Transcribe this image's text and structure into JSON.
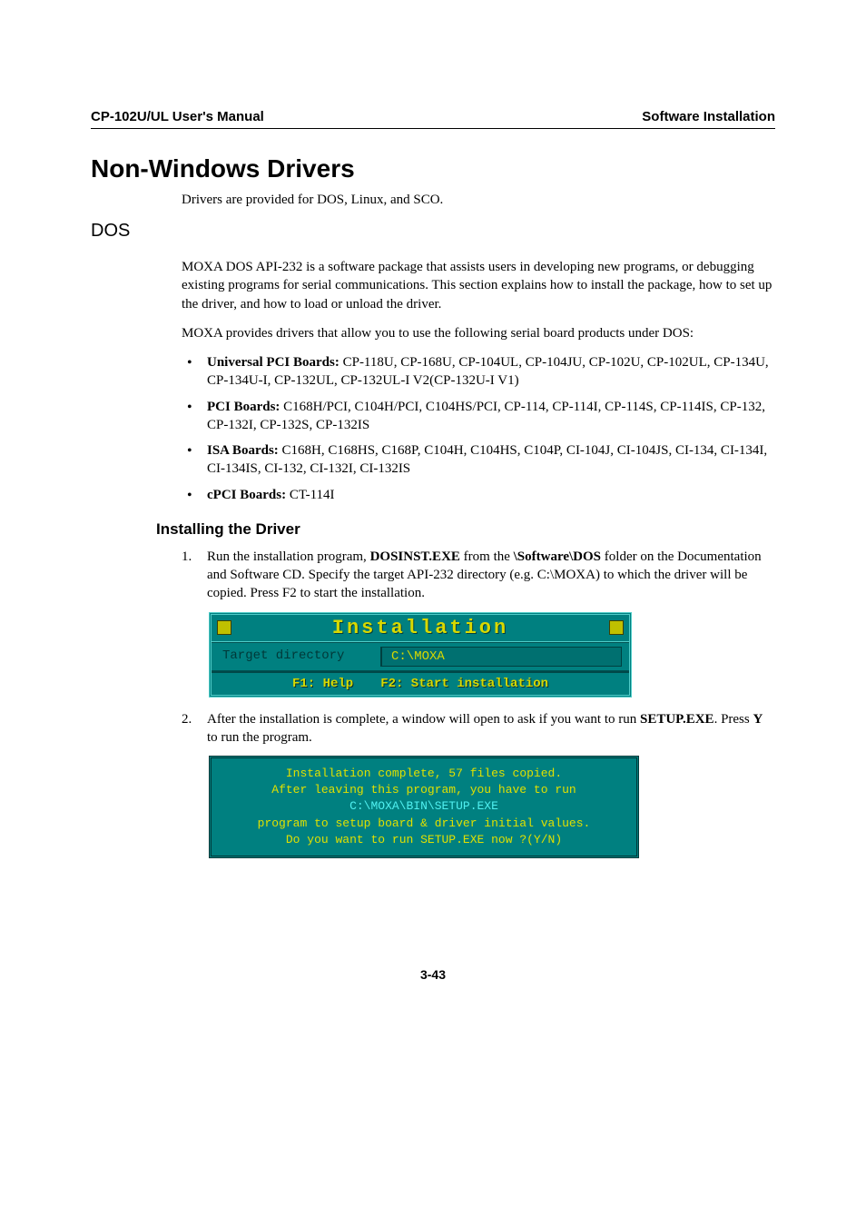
{
  "header": {
    "left": "CP-102U/UL User's Manual",
    "right": "Software Installation"
  },
  "section_title": "Non-Windows Drivers",
  "intro_line": "Drivers are provided for DOS, Linux, and SCO.",
  "dos_heading": "DOS",
  "para1": "MOXA DOS API-232 is a software package that assists users in developing new programs, or debugging existing programs for serial communications. This section explains how to install the package, how to set up the driver, and how to load or unload the driver.",
  "para2": "MOXA provides drivers that allow you to use the following serial board products under DOS:",
  "bullets": [
    {
      "bold": "Universal PCI Boards:",
      "rest": " CP-118U, CP-168U, CP-104UL, CP-104JU, CP-102U, CP-102UL, CP-134U, CP-134U-I, CP-132UL, CP-132UL-I V2(CP-132U-I V1)"
    },
    {
      "bold": "PCI Boards:",
      "rest": " C168H/PCI, C104H/PCI, C104HS/PCI, CP-114, CP-114I, CP-114S, CP-114IS, CP-132, CP-132I, CP-132S, CP-132IS"
    },
    {
      "bold": "ISA Boards:",
      "rest": " C168H, C168HS, C168P, C104H, C104HS, C104P, CI-104J, CI-104JS, CI-134, CI-134I, CI-134IS, CI-132, CI-132I, CI-132IS"
    },
    {
      "bold": "cPCI Boards:",
      "rest": " CT-114I"
    }
  ],
  "install_heading": "Installing the Driver",
  "step1": {
    "num": "1.",
    "pre": "Run the installation program, ",
    "b1": "DOSINST.EXE",
    "mid": " from the ",
    "b2": "\\Software\\DOS",
    "post": " folder on the Documentation and Software CD. Specify the target API-232 directory (e.g. C:\\MOXA) to which the driver will be copied. Press F2 to start the installation."
  },
  "dosbox1": {
    "title": "Installation",
    "target_label": "Target directory",
    "target_value": "C:\\MOXA",
    "f1": "F1: Help",
    "f2": "F2: Start installation",
    "colors": {
      "bg": "#008080",
      "border": "#51cdc9",
      "title_text": "#d8d800",
      "corner_bg": "#c0c000",
      "label_text": "#003838",
      "value_text": "#d8d800"
    }
  },
  "step2": {
    "num": "2.",
    "pre": "After the installation is complete, a window will open to ask if you want to run ",
    "b1": "SETUP.EXE",
    "mid": ". Press ",
    "b2": "Y",
    "post": " to run the program."
  },
  "dosbox2": {
    "l1": "Installation complete, 57 files copied.",
    "l2": "After leaving this program, you have to run",
    "l3": "C:\\MOXA\\BIN\\SETUP.EXE",
    "l4": "program to setup board & driver initial values.",
    "l5": "Do you want to run SETUP.EXE now ?(Y/N)",
    "colors": {
      "bg": "#008080",
      "border": "#003838",
      "yellow": "#e0e000",
      "cyan": "#50f0f0"
    }
  },
  "page_number": "3-43"
}
